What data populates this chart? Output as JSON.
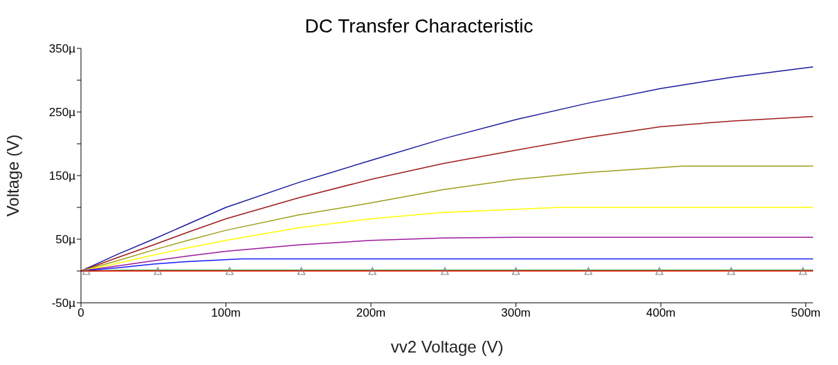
{
  "chart_data": {
    "type": "line",
    "title": "DC Transfer Characteristic",
    "xlabel": "vv2 Voltage (V)",
    "ylabel": "Voltage (V)",
    "xlim": [
      0,
      505
    ],
    "xticks": [
      0,
      {
        "value": 100,
        "label": "100m"
      },
      {
        "value": 200,
        "label": "200m"
      },
      {
        "value": 300,
        "label": "300m"
      },
      {
        "value": 400,
        "label": "400m"
      },
      {
        "value": 500,
        "label": "500m"
      }
    ],
    "ylim": [
      -50,
      350
    ],
    "yticks": [
      {
        "value": -50,
        "label": "-50µ"
      },
      {
        "value": 0,
        "label": null
      },
      {
        "value": 50,
        "label": "50µ"
      },
      {
        "value": 100,
        "label": null
      },
      {
        "value": 150,
        "label": "150µ"
      },
      {
        "value": 200,
        "label": null
      },
      {
        "value": 250,
        "label": "250µ"
      },
      {
        "value": 300,
        "label": null
      },
      {
        "value": 350,
        "label": "350µ"
      }
    ],
    "grid": false,
    "legend": false,
    "marker": "none",
    "line_style": "solid",
    "series": [
      {
        "color": "#1a1a9e",
        "x": [
          0,
          25,
          50,
          75,
          100,
          150,
          200,
          250,
          300,
          350,
          400,
          450,
          505
        ],
        "values": [
          0,
          26,
          50,
          75,
          100,
          139,
          174,
          208,
          238,
          264,
          287,
          305,
          321
        ]
      },
      {
        "color": "#9e1a1a",
        "x": [
          0,
          25,
          50,
          75,
          100,
          150,
          200,
          250,
          300,
          350,
          400,
          450,
          505
        ],
        "values": [
          0,
          21,
          41,
          62,
          82,
          115,
          144,
          169,
          190,
          210,
          227,
          236,
          243
        ]
      },
      {
        "color": "#9e9e1a",
        "x": [
          0,
          25,
          50,
          75,
          100,
          150,
          200,
          250,
          300,
          350,
          415,
          505
        ],
        "values": [
          0,
          16,
          33,
          49,
          64,
          88,
          107,
          128,
          144,
          155,
          165,
          165
        ]
      },
      {
        "color": "#ffff00",
        "x": [
          0,
          25,
          50,
          75,
          100,
          150,
          200,
          250,
          330,
          505
        ],
        "values": [
          0,
          12,
          25,
          37,
          48,
          68,
          82,
          92,
          100,
          100
        ]
      },
      {
        "color": "#9e1a9e",
        "x": [
          0,
          25,
          50,
          75,
          100,
          150,
          200,
          250,
          300,
          505
        ],
        "values": [
          0,
          8,
          16,
          24,
          31,
          41,
          48,
          52,
          53,
          53
        ]
      },
      {
        "color": "#1a1aff",
        "x": [
          0,
          25,
          50,
          75,
          111,
          505
        ],
        "values": [
          0,
          5,
          11,
          15,
          19,
          19
        ]
      },
      {
        "color": "#008000",
        "x": [
          0,
          29,
          505
        ],
        "values": [
          0,
          1,
          1
        ]
      },
      {
        "color": "#ff0000",
        "x": [
          0,
          505
        ],
        "values": [
          0,
          0
        ]
      },
      {
        "type": "scatter",
        "marker": "triangle",
        "color": "#808080",
        "x": [
          3.7,
          53,
          102.5,
          152,
          201,
          251,
          300,
          350,
          399,
          448.5,
          498
        ],
        "values": [
          0,
          0,
          0,
          0,
          0,
          0,
          0,
          0,
          0,
          0,
          0
        ]
      }
    ]
  }
}
